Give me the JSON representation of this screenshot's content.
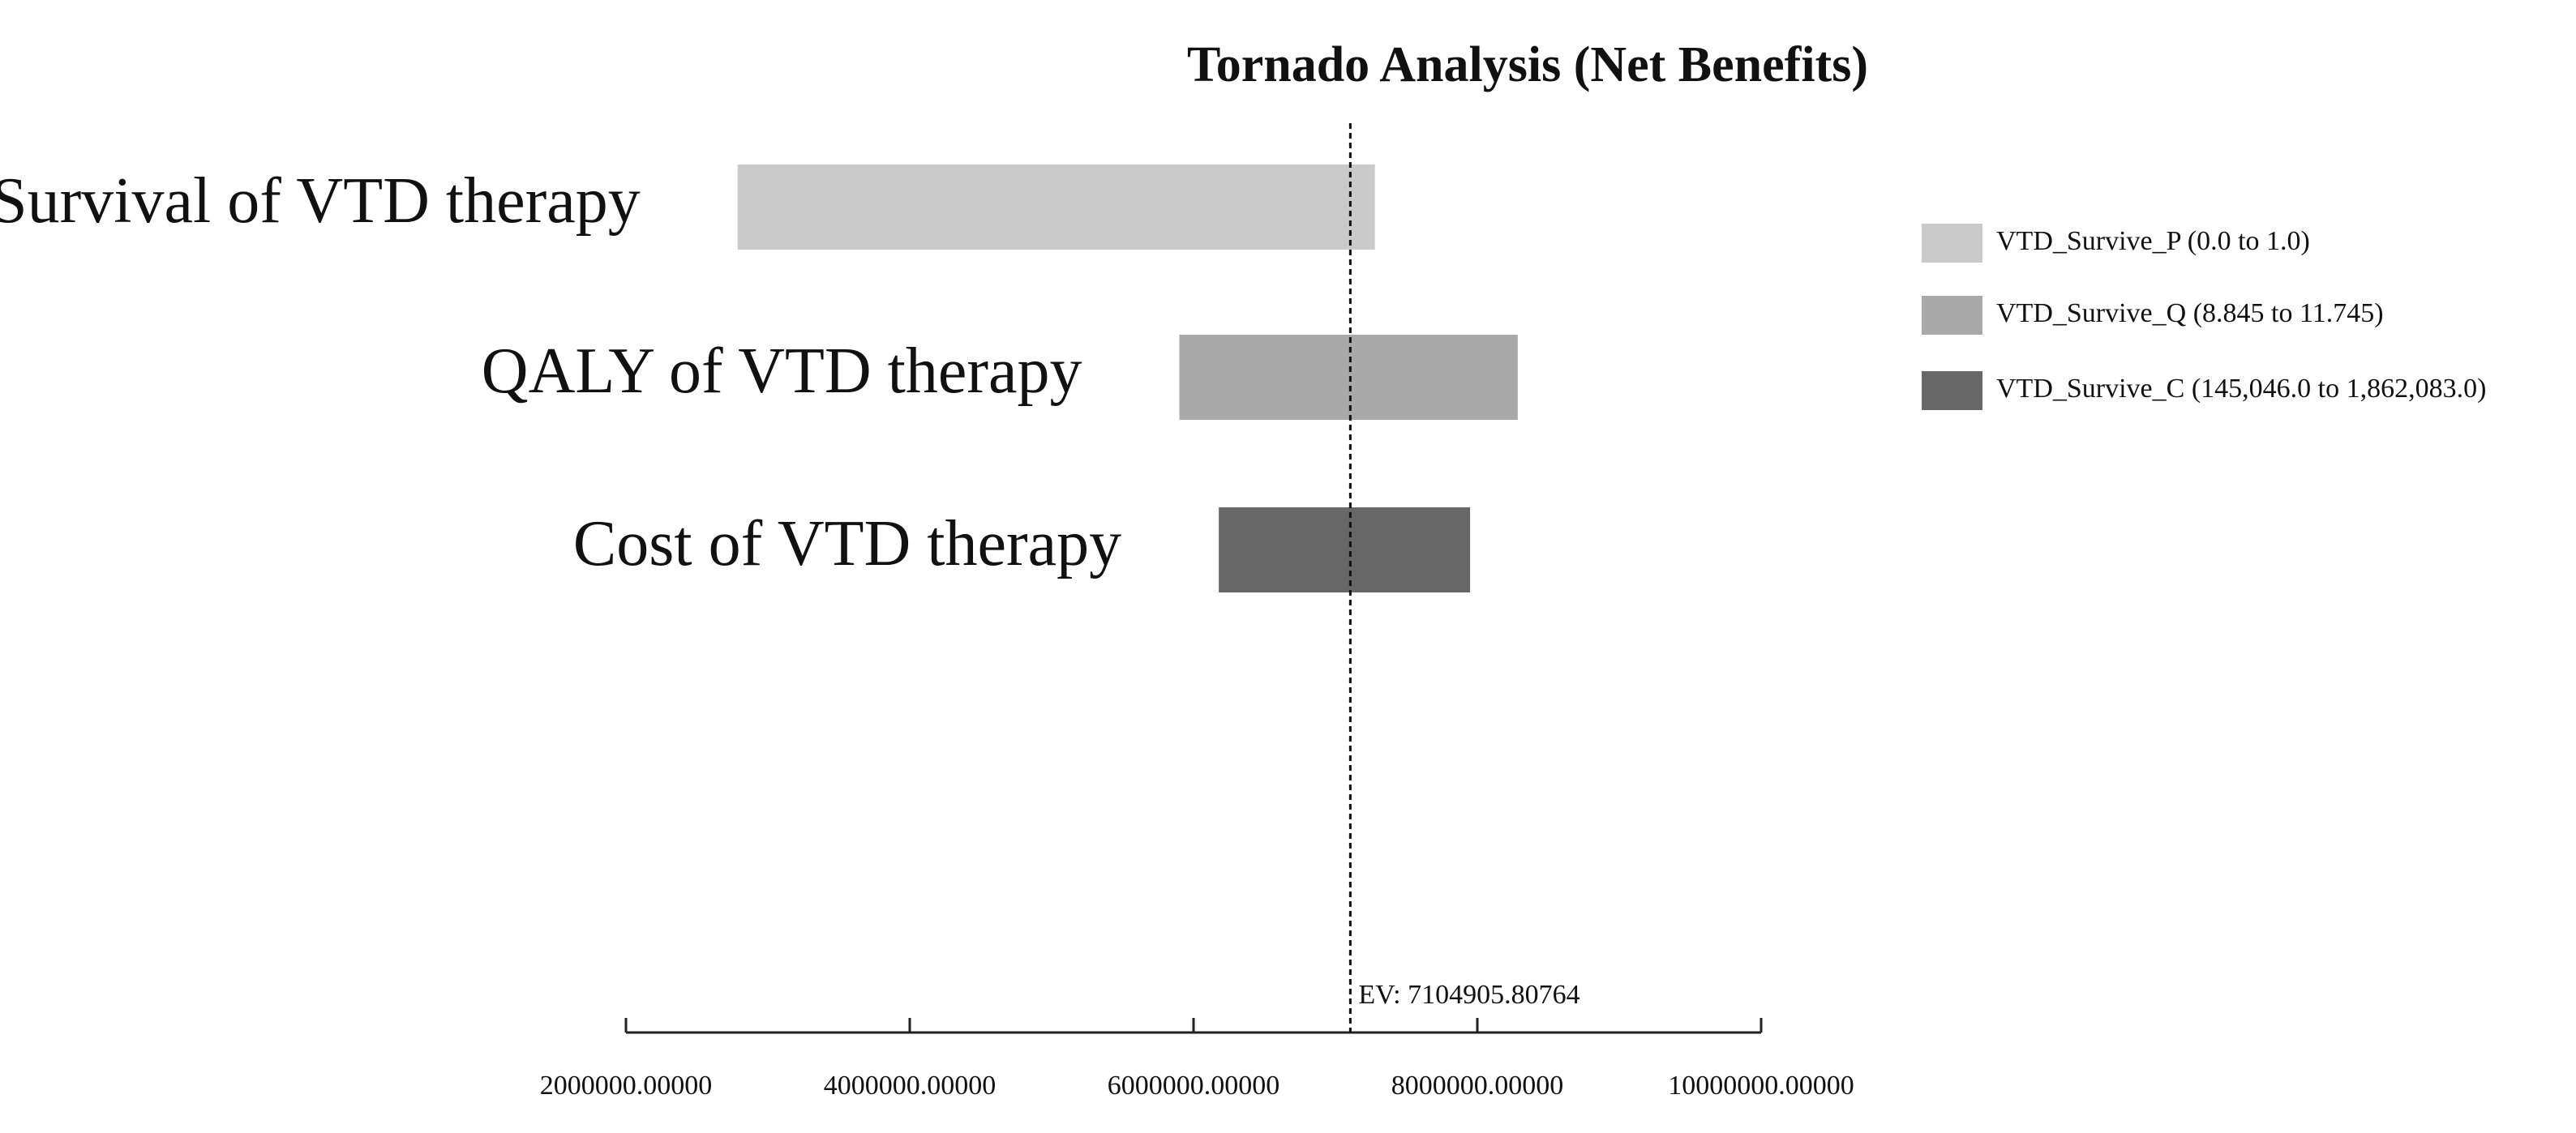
{
  "chart_data": {
    "type": "tornado",
    "title": "Tornado Analysis (Net Benefits)",
    "categories": [
      "Survival of VTD therapy",
      "QALY of VTD therapy",
      "Cost of VTD therapy"
    ],
    "series": [
      {
        "name": "VTD_Survive_P (0.0 to 1.0)",
        "color": "#cacaca",
        "low": 2787000,
        "high": 7278000
      },
      {
        "name": "VTD_Survive_Q (8.845 to 11.745)",
        "color": "#a9a9a9",
        "low": 5900000,
        "high": 8285000
      },
      {
        "name": "VTD_Survive_C (145,046.0 to 1,862,083.0)",
        "color": "#676767",
        "low": 6178000,
        "high": 7949000
      }
    ],
    "ev": {
      "value": 7104905.80764,
      "label": "EV: 7104905.80764"
    },
    "xlim": [
      2000000,
      10000000
    ],
    "xticks": [
      {
        "value": 2000000,
        "label": "2000000.00000"
      },
      {
        "value": 4000000,
        "label": "4000000.00000"
      },
      {
        "value": 6000000,
        "label": "6000000.00000"
      },
      {
        "value": 8000000,
        "label": "8000000.00000"
      },
      {
        "value": 10000000,
        "label": "10000000.00000"
      }
    ],
    "legend": "right"
  }
}
